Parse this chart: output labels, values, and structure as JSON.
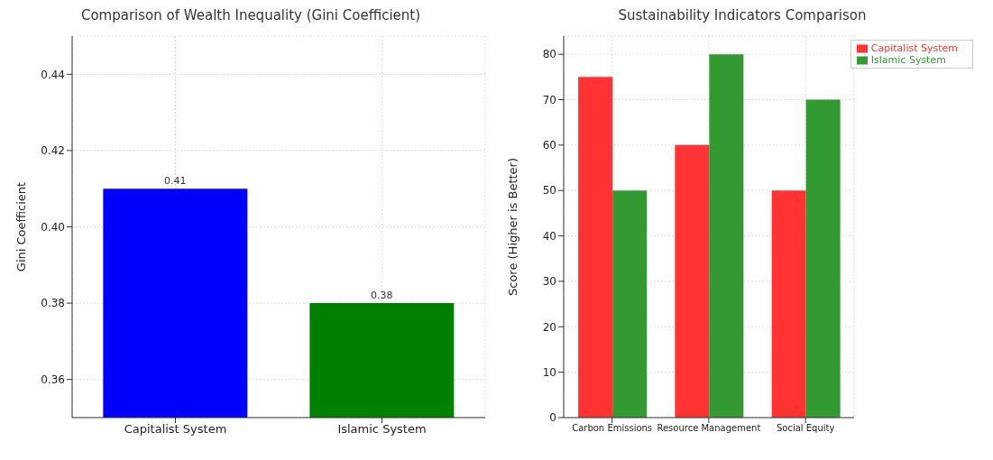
{
  "chart_data": [
    {
      "type": "bar",
      "title": "Comparison of Wealth Inequality (Gini Coefficient)",
      "ylabel": "Gini Coefficient",
      "categories": [
        "Capitalist System",
        "Islamic System"
      ],
      "values": [
        0.41,
        0.38
      ],
      "colors": [
        "#0000ff",
        "#008000"
      ],
      "data_labels": true,
      "ylim": [
        0.35,
        0.45
      ],
      "yticks": [
        0.36,
        0.38,
        {
          "value": 0.4,
          "label": "0.40"
        },
        0.42,
        0.44
      ],
      "grid": true
    },
    {
      "type": "bar",
      "title": "Sustainability Indicators Comparison",
      "ylabel": "Score (Higher is Better)",
      "categories": [
        "Carbon Emissions",
        "Resource Management",
        "Social Equity"
      ],
      "series": [
        {
          "name": "Capitalist System",
          "color": "#ff3333",
          "values": [
            75,
            60,
            50
          ]
        },
        {
          "name": "Islamic System",
          "color": "#339933",
          "values": [
            50,
            80,
            70
          ]
        }
      ],
      "ylim": [
        0,
        84
      ],
      "yticks": [
        0,
        10,
        20,
        30,
        40,
        50,
        60,
        70,
        80
      ],
      "grid": true,
      "legend": "top right"
    }
  ]
}
